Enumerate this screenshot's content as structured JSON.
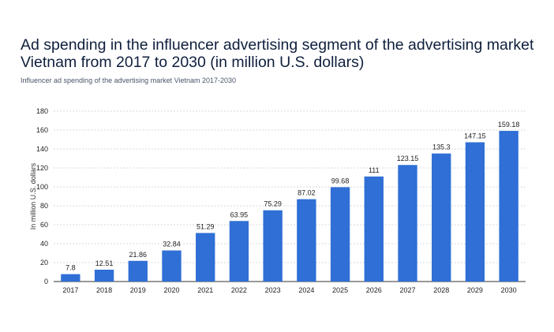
{
  "chart_data": {
    "type": "bar",
    "title": "Ad spending in the influencer advertising segment of the advertising market Vietnam from 2017 to 2030 (in million U.S. dollars)",
    "subtitle": "Influencer ad spending of the advertising market Vietnam 2017-2030",
    "ylabel": "In million U.S. dollars",
    "xlabel": "",
    "categories": [
      "2017",
      "2018",
      "2019",
      "2020",
      "2021",
      "2022",
      "2023",
      "2024",
      "2025",
      "2026",
      "2027",
      "2028",
      "2029",
      "2030"
    ],
    "values": [
      7.8,
      12.51,
      21.86,
      32.84,
      51.29,
      63.95,
      75.29,
      87.02,
      99.68,
      111,
      123.15,
      135.3,
      147.15,
      159.18
    ],
    "value_labels": [
      "7.8",
      "12.51",
      "21.86",
      "32.84",
      "51.29",
      "63.95",
      "75.29",
      "87.02",
      "99.68",
      "111",
      "123.15",
      "135.3",
      "147.15",
      "159.18"
    ],
    "ylim": [
      0,
      180
    ],
    "yticks": [
      0,
      20,
      40,
      60,
      80,
      100,
      120,
      140,
      160,
      180
    ],
    "grid": true,
    "bar_color": "#2f6fd6"
  }
}
